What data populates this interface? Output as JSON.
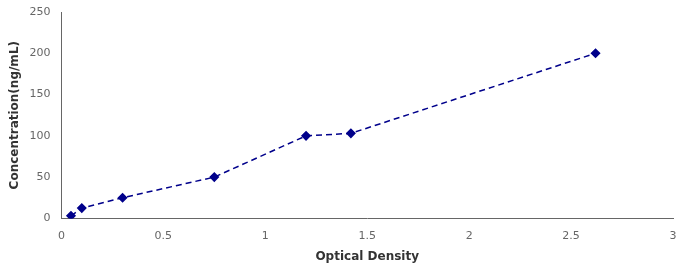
{
  "chart_data": {
    "type": "line",
    "x": [
      0.047,
      0.1,
      0.3,
      0.75,
      1.2,
      1.42,
      2.62
    ],
    "values": [
      3.13,
      12.5,
      25,
      50,
      100,
      103,
      200
    ],
    "color": "#00008B",
    "marker": "diamond",
    "line_style": "dashed",
    "xlabel": "Optical Density",
    "ylabel": "Concentration(ng/mL)",
    "xlim": [
      0,
      3
    ],
    "ylim": [
      0,
      250
    ],
    "xticks": [
      0,
      0.5,
      1,
      1.5,
      2,
      2.5,
      3
    ],
    "yticks": [
      0,
      50,
      100,
      150,
      200,
      250
    ],
    "grid": false
  }
}
